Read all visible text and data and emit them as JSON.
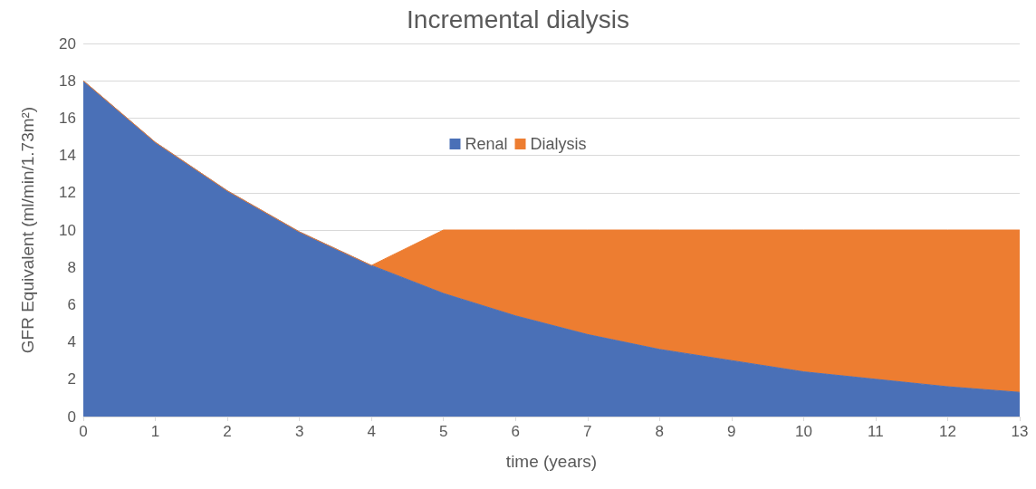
{
  "chart_data": {
    "type": "area",
    "title": "Incremental dialysis",
    "xlabel": "time (years)",
    "ylabel": "GFR Equivalent (ml/min/1.73m²)",
    "categories": [
      "0",
      "1",
      "2",
      "3",
      "4",
      "5",
      "6",
      "7",
      "8",
      "9",
      "10",
      "11",
      "12",
      "13"
    ],
    "stacked": true,
    "series": [
      {
        "name": "Renal",
        "color": "#4a70b7",
        "values": [
          18,
          14.7,
          12.1,
          9.9,
          8.1,
          6.6,
          5.4,
          4.4,
          3.6,
          3.0,
          2.4,
          2.0,
          1.6,
          1.3
        ]
      },
      {
        "name": "Dialysis",
        "color": "#ed7d31",
        "values": [
          0,
          0,
          0,
          0,
          0,
          3.4,
          4.6,
          5.6,
          6.4,
          7.0,
          7.6,
          8.0,
          8.4,
          8.7
        ]
      }
    ],
    "ylim": [
      0,
      20
    ],
    "yticks": [
      0,
      2,
      4,
      6,
      8,
      10,
      12,
      14,
      16,
      18,
      20
    ],
    "grid": "y",
    "legend": "top"
  }
}
